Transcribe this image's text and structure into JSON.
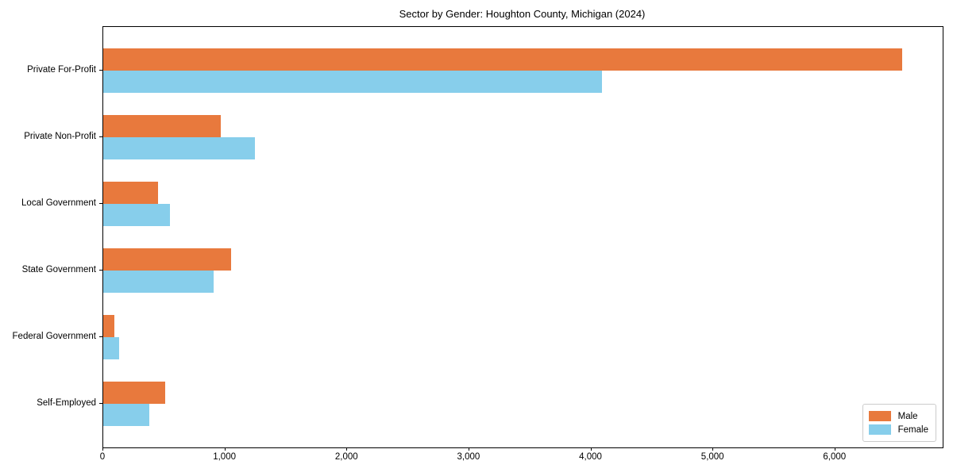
{
  "figure": {
    "background": "#ffffff",
    "spine_color": "#000000"
  },
  "chart_data": {
    "type": "bar",
    "orientation": "horizontal",
    "title": "Sector by Gender: Houghton County, Michigan (2024)",
    "categories": [
      "Private For-Profit",
      "Private Non-Profit",
      "Local Government",
      "State Government",
      "Federal Government",
      "Self-Employed"
    ],
    "series": [
      {
        "name": "Male",
        "color": "#e8793d",
        "values": [
          6550,
          960,
          450,
          1050,
          90,
          510
        ]
      },
      {
        "name": "Female",
        "color": "#87ceeb",
        "values": [
          4090,
          1245,
          545,
          905,
          130,
          380
        ]
      }
    ],
    "xlabel": "",
    "ylabel": "",
    "xlim": [
      0,
      6880
    ],
    "xticks": [
      0,
      1000,
      2000,
      3000,
      4000,
      5000,
      6000
    ],
    "xtick_labels": [
      "0",
      "1,000",
      "2,000",
      "3,000",
      "4,000",
      "5,000",
      "6,000"
    ],
    "grid": false,
    "legend": {
      "position": "lower right",
      "entries": [
        "Male",
        "Female"
      ]
    }
  }
}
